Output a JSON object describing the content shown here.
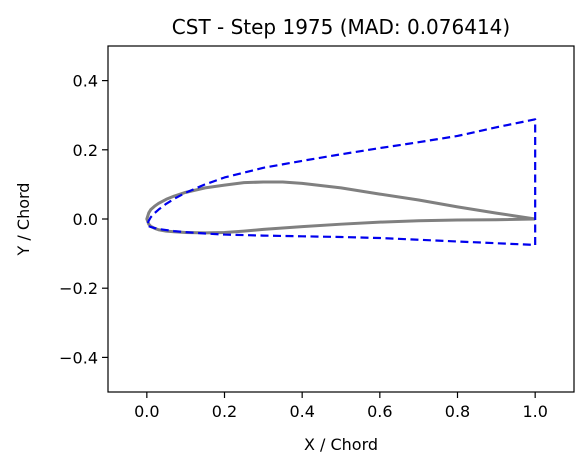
{
  "chart_data": {
    "type": "line",
    "title": "CST - Step 1975 (MAD: 0.076414)",
    "xlabel": "X / Chord",
    "ylabel": "Y / Chord",
    "xlim": [
      -0.1,
      1.1
    ],
    "ylim": [
      -0.5,
      0.5
    ],
    "xticks": [
      0.0,
      0.2,
      0.4,
      0.6,
      0.8,
      1.0
    ],
    "xtick_labels": [
      "0.0",
      "0.2",
      "0.4",
      "0.6",
      "0.8",
      "1.0"
    ],
    "yticks": [
      -0.4,
      -0.2,
      0.0,
      0.2,
      0.4
    ],
    "ytick_labels": [
      "−0.4",
      "−0.2",
      "0.0",
      "0.2",
      "0.4"
    ],
    "grid": false,
    "legend": false,
    "series": [
      {
        "color": "#808080",
        "style": "solid",
        "x": [
          1.0,
          0.9,
          0.8,
          0.7,
          0.6,
          0.5,
          0.4,
          0.35,
          0.3,
          0.25,
          0.2,
          0.15,
          0.1,
          0.07,
          0.05,
          0.03,
          0.02,
          0.01,
          0.005,
          0.0,
          0.005,
          0.01,
          0.02,
          0.03,
          0.05,
          0.07,
          0.1,
          0.15,
          0.2,
          0.25,
          0.3,
          0.4,
          0.5,
          0.6,
          0.7,
          0.8,
          0.9,
          1.0
        ],
        "y": [
          0.0,
          0.017,
          0.035,
          0.055,
          0.072,
          0.09,
          0.103,
          0.107,
          0.107,
          0.105,
          0.098,
          0.09,
          0.077,
          0.066,
          0.057,
          0.045,
          0.037,
          0.027,
          0.018,
          0.0,
          -0.015,
          -0.021,
          -0.027,
          -0.031,
          -0.035,
          -0.037,
          -0.039,
          -0.04,
          -0.039,
          -0.035,
          -0.03,
          -0.022,
          -0.015,
          -0.009,
          -0.005,
          -0.003,
          -0.002,
          0.0
        ]
      },
      {
        "color": "#0000ee",
        "style": "dashed",
        "x": [
          1.0,
          1.0,
          0.9,
          0.8,
          0.7,
          0.6,
          0.5,
          0.4,
          0.3,
          0.2,
          0.15,
          0.1,
          0.07,
          0.05,
          0.03,
          0.02,
          0.01,
          0.005,
          0.0,
          0.01,
          0.02,
          0.03,
          0.05,
          0.07,
          0.1,
          0.15,
          0.2,
          0.3,
          0.4,
          0.5,
          0.6,
          0.7,
          0.8,
          0.9,
          1.0
        ],
        "y": [
          -0.075,
          0.288,
          0.265,
          0.24,
          0.222,
          0.205,
          0.187,
          0.168,
          0.148,
          0.12,
          0.1,
          0.076,
          0.058,
          0.044,
          0.027,
          0.017,
          0.005,
          -0.005,
          -0.018,
          -0.023,
          -0.026,
          -0.029,
          -0.032,
          -0.035,
          -0.038,
          -0.042,
          -0.045,
          -0.048,
          -0.05,
          -0.052,
          -0.055,
          -0.06,
          -0.065,
          -0.07,
          -0.075
        ]
      }
    ]
  }
}
